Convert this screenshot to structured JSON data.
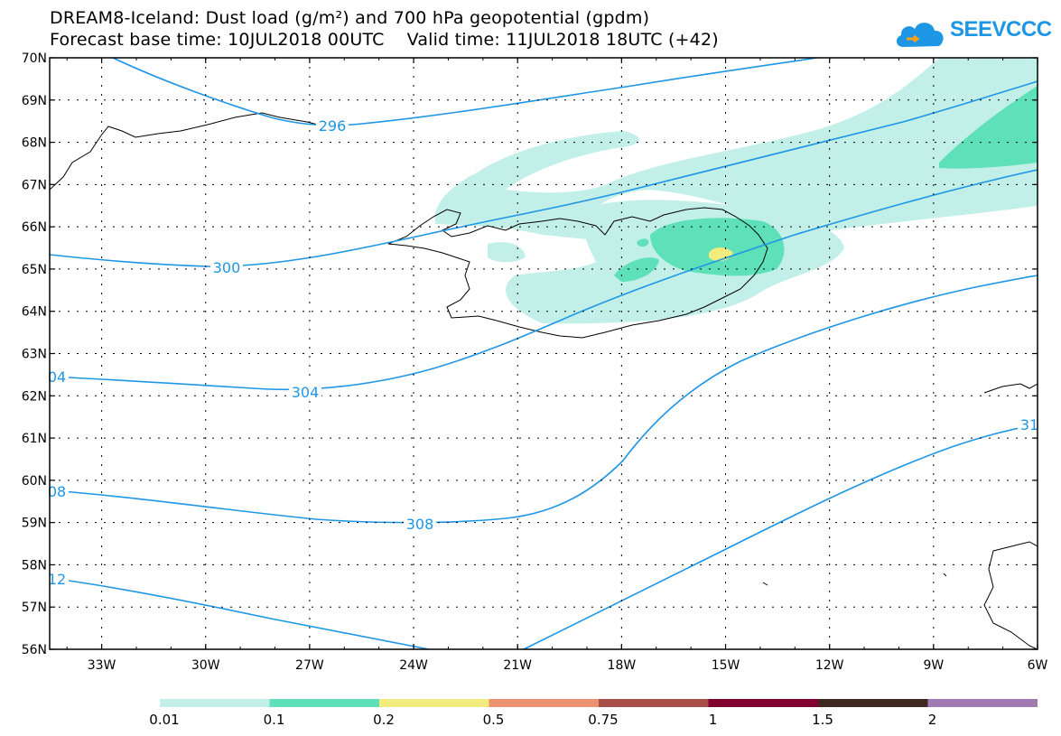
{
  "header": {
    "title_line1": "DREAM8-Iceland: Dust load (g/m²) and 700 hPa geopotential (gpdm)",
    "title_line2": "Forecast base time: 10JUL2018 00UTC    Valid time: 11JUL2018 18UTC (+42)",
    "logo_text": "SEEVCCC",
    "logo_icon": "cloud-icon"
  },
  "map": {
    "lat_range": [
      56,
      70
    ],
    "lon_range": [
      -34.5,
      -6
    ],
    "lat_labels": [
      "70N",
      "69N",
      "68N",
      "67N",
      "66N",
      "65N",
      "64N",
      "63N",
      "62N",
      "61N",
      "60N",
      "59N",
      "58N",
      "57N",
      "56N"
    ],
    "lon_labels": [
      "33W",
      "30W",
      "27W",
      "24W",
      "21W",
      "18W",
      "15W",
      "12W",
      "9W",
      "6W"
    ],
    "contour_color": "#1e96e6",
    "contour_labels": [
      {
        "text": "296"
      },
      {
        "text": "300"
      },
      {
        "text": "304"
      },
      {
        "text": "04"
      },
      {
        "text": "308"
      },
      {
        "text": "08"
      },
      {
        "text": "12"
      },
      {
        "text": "31"
      }
    ]
  },
  "legend": {
    "colors": [
      "#c2f0e8",
      "#5ee0b8",
      "#f2ec7e",
      "#ec9270",
      "#a85048",
      "#800030",
      "#402820",
      "#a07ab0"
    ],
    "labels": [
      "0.01",
      "0.1",
      "0.2",
      "0.5",
      "0.75",
      "1",
      "1.5",
      "2"
    ]
  }
}
